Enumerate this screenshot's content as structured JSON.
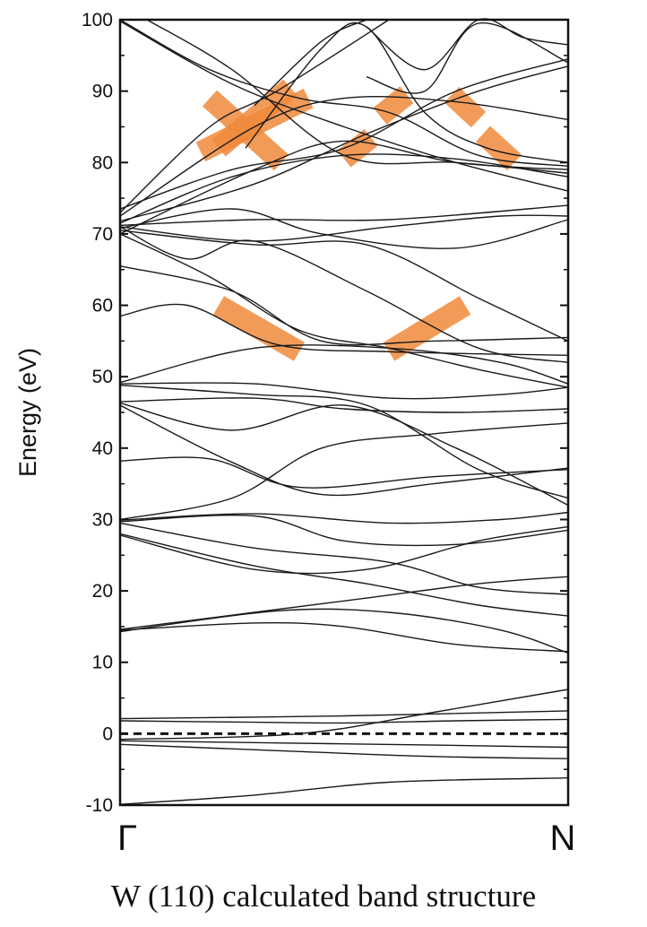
{
  "chart_data": {
    "type": "line",
    "caption": "W (110)  calculated band structure",
    "ylabel": "Energy (eV)",
    "ylim": [
      -10,
      100
    ],
    "yticks": [
      -10,
      0,
      10,
      20,
      30,
      40,
      50,
      60,
      70,
      80,
      90,
      100
    ],
    "x_labels": [
      "Γ",
      "N"
    ],
    "xlim": [
      0,
      1
    ],
    "fermi_level": 0,
    "band_color": "#1a1a1a",
    "highlight_color": "#f08a3c",
    "bands": [
      [
        [
          0,
          -9.9
        ],
        [
          0.3,
          -8.6
        ],
        [
          0.6,
          -6.8
        ],
        [
          1,
          -6.2
        ]
      ],
      [
        [
          0,
          -1.5
        ],
        [
          0.4,
          -2.5
        ],
        [
          0.7,
          -3.2
        ],
        [
          1,
          -3.5
        ]
      ],
      [
        [
          0,
          -1.0
        ],
        [
          0.35,
          -1.3
        ],
        [
          0.7,
          -1.6
        ],
        [
          1,
          -1.9
        ]
      ],
      [
        [
          0,
          -0.8
        ],
        [
          0.4,
          0.0
        ],
        [
          0.7,
          3.0
        ],
        [
          1,
          6.2
        ]
      ],
      [
        [
          0,
          1.8
        ],
        [
          0.3,
          1.6
        ],
        [
          0.5,
          1.5
        ],
        [
          0.75,
          1.8
        ],
        [
          1,
          2.0
        ]
      ],
      [
        [
          0,
          2.1
        ],
        [
          0.5,
          2.5
        ],
        [
          1,
          3.2
        ]
      ],
      [
        [
          0,
          14.5
        ],
        [
          0.3,
          15.5
        ],
        [
          0.5,
          15.0
        ],
        [
          0.75,
          12.5
        ],
        [
          1,
          11.5
        ]
      ],
      [
        [
          0,
          14.3
        ],
        [
          0.35,
          17.2
        ],
        [
          0.6,
          17.0
        ],
        [
          0.85,
          14.5
        ],
        [
          1,
          11.3
        ]
      ],
      [
        [
          0,
          14.6
        ],
        [
          0.3,
          17.0
        ],
        [
          0.55,
          19.0
        ],
        [
          0.8,
          21.0
        ],
        [
          1,
          22.0
        ]
      ],
      [
        [
          0,
          28.0
        ],
        [
          0.3,
          23.5
        ],
        [
          0.55,
          21.0
        ],
        [
          0.8,
          18.0
        ],
        [
          1,
          16.5
        ]
      ],
      [
        [
          0,
          27.8
        ],
        [
          0.3,
          23.0
        ],
        [
          0.55,
          23.0
        ],
        [
          0.8,
          27.0
        ],
        [
          1,
          29.0
        ]
      ],
      [
        [
          0,
          29.5
        ],
        [
          0.3,
          26.0
        ],
        [
          0.6,
          24.0
        ],
        [
          0.8,
          20.5
        ],
        [
          1,
          19.5
        ]
      ],
      [
        [
          0,
          29.7
        ],
        [
          0.3,
          30.5
        ],
        [
          0.5,
          27.0
        ],
        [
          0.75,
          26.5
        ],
        [
          1,
          28.5
        ]
      ],
      [
        [
          0,
          29.9
        ],
        [
          0.3,
          30.8
        ],
        [
          0.6,
          29.5
        ],
        [
          0.85,
          30.0
        ],
        [
          1,
          31.0
        ]
      ],
      [
        [
          0,
          30.0
        ],
        [
          0.25,
          33.0
        ],
        [
          0.45,
          40.0
        ],
        [
          0.7,
          42.0
        ],
        [
          1,
          43.5
        ]
      ],
      [
        [
          0,
          38.2
        ],
        [
          0.2,
          38.5
        ],
        [
          0.4,
          34.5
        ],
        [
          0.7,
          36.0
        ],
        [
          1,
          37.0
        ]
      ],
      [
        [
          0,
          46.0
        ],
        [
          0.25,
          38.0
        ],
        [
          0.45,
          33.5
        ],
        [
          0.7,
          35.0
        ],
        [
          1,
          37.2
        ]
      ],
      [
        [
          0,
          46.3
        ],
        [
          0.25,
          42.5
        ],
        [
          0.5,
          46.0
        ],
        [
          0.75,
          40.0
        ],
        [
          1,
          32.0
        ]
      ],
      [
        [
          0,
          46.5
        ],
        [
          0.3,
          47.0
        ],
        [
          0.5,
          45.5
        ],
        [
          0.75,
          45.0
        ],
        [
          1,
          45.5
        ]
      ],
      [
        [
          0,
          48.8
        ],
        [
          0.3,
          47.5
        ],
        [
          0.55,
          46.0
        ],
        [
          0.8,
          37.0
        ],
        [
          1,
          33.0
        ]
      ],
      [
        [
          0,
          49.0
        ],
        [
          0.3,
          49.0
        ],
        [
          0.6,
          47.0
        ],
        [
          0.85,
          47.5
        ],
        [
          1,
          48.5
        ]
      ],
      [
        [
          0,
          49.2
        ],
        [
          0.3,
          54.0
        ],
        [
          0.6,
          54.0
        ],
        [
          0.85,
          52.0
        ],
        [
          1,
          49.0
        ]
      ],
      [
        [
          0,
          58.5
        ],
        [
          0.15,
          60.0
        ],
        [
          0.35,
          54.5
        ],
        [
          0.6,
          53.5
        ],
        [
          1,
          53.0
        ]
      ],
      [
        [
          0,
          65.5
        ],
        [
          0.25,
          62.0
        ],
        [
          0.45,
          55.0
        ],
        [
          0.7,
          55.0
        ],
        [
          1,
          55.5
        ]
      ],
      [
        [
          0,
          70.0
        ],
        [
          0.2,
          64.0
        ],
        [
          0.4,
          56.5
        ],
        [
          0.6,
          54.0
        ],
        [
          0.8,
          51.0
        ],
        [
          1,
          48.5
        ]
      ],
      [
        [
          0,
          71.0
        ],
        [
          0.15,
          66.5
        ],
        [
          0.3,
          69.0
        ],
        [
          0.55,
          62.0
        ],
        [
          0.8,
          54.0
        ],
        [
          1,
          52.0
        ]
      ],
      [
        [
          0,
          70.5
        ],
        [
          0.3,
          68.5
        ],
        [
          0.55,
          68.5
        ],
        [
          0.8,
          61.0
        ],
        [
          1,
          55.0
        ]
      ],
      [
        [
          0,
          71.0
        ],
        [
          0.3,
          69.0
        ],
        [
          0.6,
          71.0
        ],
        [
          0.85,
          72.5
        ],
        [
          1,
          72.5
        ]
      ],
      [
        [
          0,
          70.8
        ],
        [
          0.25,
          73.5
        ],
        [
          0.45,
          70.0
        ],
        [
          0.75,
          68.0
        ],
        [
          1,
          72.0
        ]
      ],
      [
        [
          0,
          71.2
        ],
        [
          0.3,
          72.0
        ],
        [
          0.6,
          72.0
        ],
        [
          1,
          74.0
        ]
      ],
      [
        [
          0,
          70.0
        ],
        [
          0.3,
          79.0
        ],
        [
          0.5,
          83.0
        ],
        [
          0.75,
          80.0
        ],
        [
          1,
          79.0
        ]
      ],
      [
        [
          0,
          71.5
        ],
        [
          0.25,
          78.0
        ],
        [
          0.5,
          81.0
        ],
        [
          0.75,
          80.5
        ],
        [
          1,
          78.0
        ]
      ],
      [
        [
          0,
          72.5
        ],
        [
          0.3,
          85.0
        ],
        [
          0.5,
          89.0
        ],
        [
          0.75,
          88.5
        ],
        [
          1,
          86.0
        ]
      ],
      [
        [
          0,
          73.0
        ],
        [
          0.2,
          85.0
        ],
        [
          0.35,
          90.0
        ],
        [
          0.6,
          100.0
        ]
      ],
      [
        [
          0,
          73.5
        ],
        [
          0.25,
          79.0
        ],
        [
          0.5,
          82.0
        ],
        [
          0.75,
          90.0
        ],
        [
          1,
          94.5
        ]
      ],
      [
        [
          0,
          71.8
        ],
        [
          0.3,
          77.0
        ],
        [
          0.55,
          84.0
        ],
        [
          0.8,
          90.0
        ],
        [
          1,
          93.5
        ]
      ],
      [
        [
          0,
          100.0
        ],
        [
          0.2,
          93.0
        ],
        [
          0.4,
          89.0
        ],
        [
          0.6,
          87.0
        ],
        [
          0.8,
          81.0
        ],
        [
          1,
          79.5
        ]
      ],
      [
        [
          0,
          99.8
        ],
        [
          0.25,
          91.0
        ],
        [
          0.5,
          85.0
        ],
        [
          0.75,
          80.0
        ],
        [
          1,
          76.0
        ]
      ],
      [
        [
          0.06,
          100.0
        ],
        [
          0.25,
          93.0
        ],
        [
          0.5,
          81.0
        ],
        [
          0.75,
          80.0
        ],
        [
          1,
          78.5
        ]
      ],
      [
        [
          0.3,
          88.0
        ],
        [
          0.45,
          97.0
        ],
        [
          0.55,
          100.0
        ]
      ],
      [
        [
          0.28,
          82.0
        ],
        [
          0.45,
          96.0
        ],
        [
          0.55,
          99.0
        ],
        [
          0.68,
          87.0
        ],
        [
          0.82,
          82.0
        ],
        [
          1,
          80.0
        ]
      ],
      [
        [
          0.55,
          99.0
        ],
        [
          0.68,
          93.0
        ],
        [
          0.8,
          100.0
        ],
        [
          0.9,
          97.5
        ],
        [
          1,
          96.5
        ]
      ],
      [
        [
          0.55,
          92.0
        ],
        [
          0.68,
          90.0
        ],
        [
          0.8,
          99.5
        ],
        [
          1,
          94.0
        ]
      ]
    ],
    "highlights": [
      {
        "x": [
          0.2,
          0.36
        ],
        "y": [
          89.0,
          80.0
        ]
      },
      {
        "x": [
          0.18,
          0.42
        ],
        "y": [
          81.5,
          89.0
        ]
      },
      {
        "x": [
          0.22,
          0.38
        ],
        "y": [
          82.0,
          90.5
        ]
      },
      {
        "x": [
          0.5,
          0.56
        ],
        "y": [
          80.5,
          83.5
        ]
      },
      {
        "x": [
          0.58,
          0.64
        ],
        "y": [
          86.5,
          89.5
        ]
      },
      {
        "x": [
          0.74,
          0.8
        ],
        "y": [
          89.5,
          86.0
        ]
      },
      {
        "x": [
          0.81,
          0.88
        ],
        "y": [
          84.0,
          80.0
        ]
      },
      {
        "x": [
          0.22,
          0.4
        ],
        "y": [
          60.0,
          53.5
        ]
      },
      {
        "x": [
          0.6,
          0.77
        ],
        "y": [
          53.5,
          60.0
        ]
      }
    ]
  }
}
